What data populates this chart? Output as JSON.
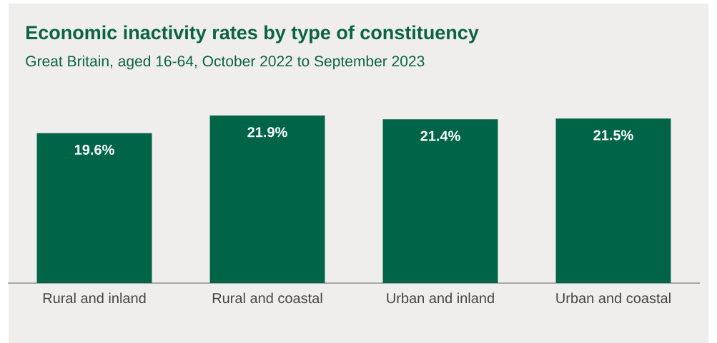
{
  "chart_data": {
    "type": "bar",
    "title": "Economic inactivity rates by type of constituency",
    "subtitle": "Great Britain, aged 16-64, October 2022 to September 2023",
    "categories": [
      "Rural and inland",
      "Rural and coastal",
      "Urban and inland",
      "Urban and coastal"
    ],
    "values": [
      19.6,
      21.9,
      21.4,
      21.5
    ],
    "color": "#006548",
    "value_labels": [
      "19.6%",
      "21.9%",
      "21.4%",
      "21.5%"
    ],
    "tick_labels": "x"
  }
}
